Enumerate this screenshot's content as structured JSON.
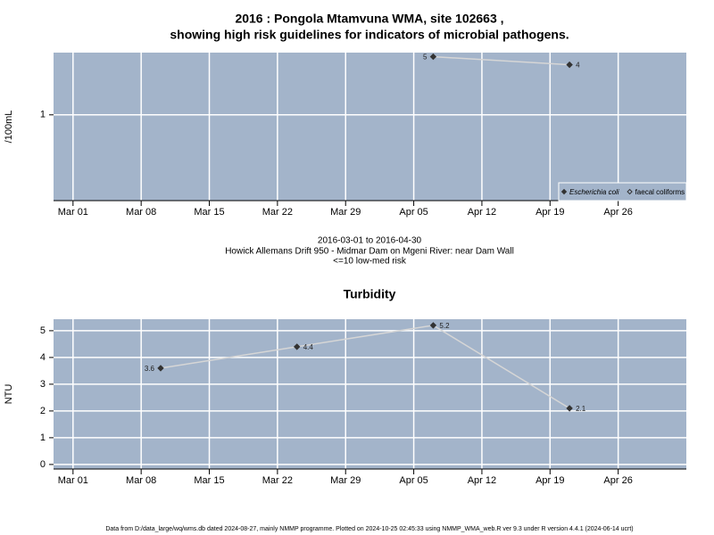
{
  "title": [
    "2016 : Pongola Mtamvuna WMA, site 102663 ,",
    "showing high risk guidelines for indicators of microbial pathogens."
  ],
  "footer": "Data from D:/data_large/wq/wms.db dated 2024-08-27, mainly NMMP programme. Plotted on 2024-10-25 02:45:33 using NMMP_WMA_web.R ver 9.3 under R version 4.4.1 (2024-06-14 ucrt)",
  "chart_data": [
    {
      "type": "line",
      "ylabel": "/100mL",
      "log_y": true,
      "grid": true,
      "background": "#a3b4ca",
      "line_color": "#d6d6d6",
      "x": [
        "2016-04-07",
        "2016-04-21"
      ],
      "series": [
        {
          "name": "Escherichia coli",
          "color": "#333333",
          "marker": "filled",
          "values": [
            5,
            4
          ]
        },
        {
          "name": "faecal coliforms",
          "color": "#333333",
          "marker": "open",
          "values": [
            null,
            null
          ]
        }
      ],
      "xlim": [
        "2016-02-28",
        "2016-05-03"
      ],
      "xticks": [
        {
          "value": "2016-03-01",
          "label": "Mar 01"
        },
        {
          "value": "2016-03-08",
          "label": "Mar 08"
        },
        {
          "value": "2016-03-15",
          "label": "Mar 15"
        },
        {
          "value": "2016-03-22",
          "label": "Mar 22"
        },
        {
          "value": "2016-03-29",
          "label": "Mar 29"
        },
        {
          "value": "2016-04-05",
          "label": "Apr 05"
        },
        {
          "value": "2016-04-12",
          "label": "Apr 12"
        },
        {
          "value": "2016-04-19",
          "label": "Apr 19"
        },
        {
          "value": "2016-04-26",
          "label": "Apr 26"
        }
      ],
      "ylim": [
        0.093,
        5.6
      ],
      "yticks": [
        1
      ],
      "legend": "bottom-right",
      "annotations": [
        "2016-03-01 to 2016-04-30",
        "Howick Allemans Drift 950 - Midmar Dam on Mgeni River: near Dam Wall",
        "<=10 low-med risk"
      ]
    },
    {
      "type": "line",
      "title": "Turbidity",
      "ylabel": "NTU",
      "log_y": false,
      "grid": true,
      "background": "#a3b4ca",
      "line_color": "#d6d6d6",
      "color": "#333333",
      "x": [
        "2016-03-10",
        "2016-03-24",
        "2016-04-07",
        "2016-04-21"
      ],
      "values": [
        3.6,
        4.4,
        5.2,
        2.1
      ],
      "xlim": [
        "2016-02-28",
        "2016-05-03"
      ],
      "xticks": [
        {
          "value": "2016-03-01",
          "label": "Mar 01"
        },
        {
          "value": "2016-03-08",
          "label": "Mar 08"
        },
        {
          "value": "2016-03-15",
          "label": "Mar 15"
        },
        {
          "value": "2016-03-22",
          "label": "Mar 22"
        },
        {
          "value": "2016-03-29",
          "label": "Mar 29"
        },
        {
          "value": "2016-04-05",
          "label": "Apr 05"
        },
        {
          "value": "2016-04-12",
          "label": "Apr 12"
        },
        {
          "value": "2016-04-19",
          "label": "Apr 19"
        },
        {
          "value": "2016-04-26",
          "label": "Apr 26"
        }
      ],
      "ylim": [
        -0.17,
        5.43
      ],
      "yticks": [
        0,
        1,
        2,
        3,
        4,
        5
      ]
    }
  ]
}
